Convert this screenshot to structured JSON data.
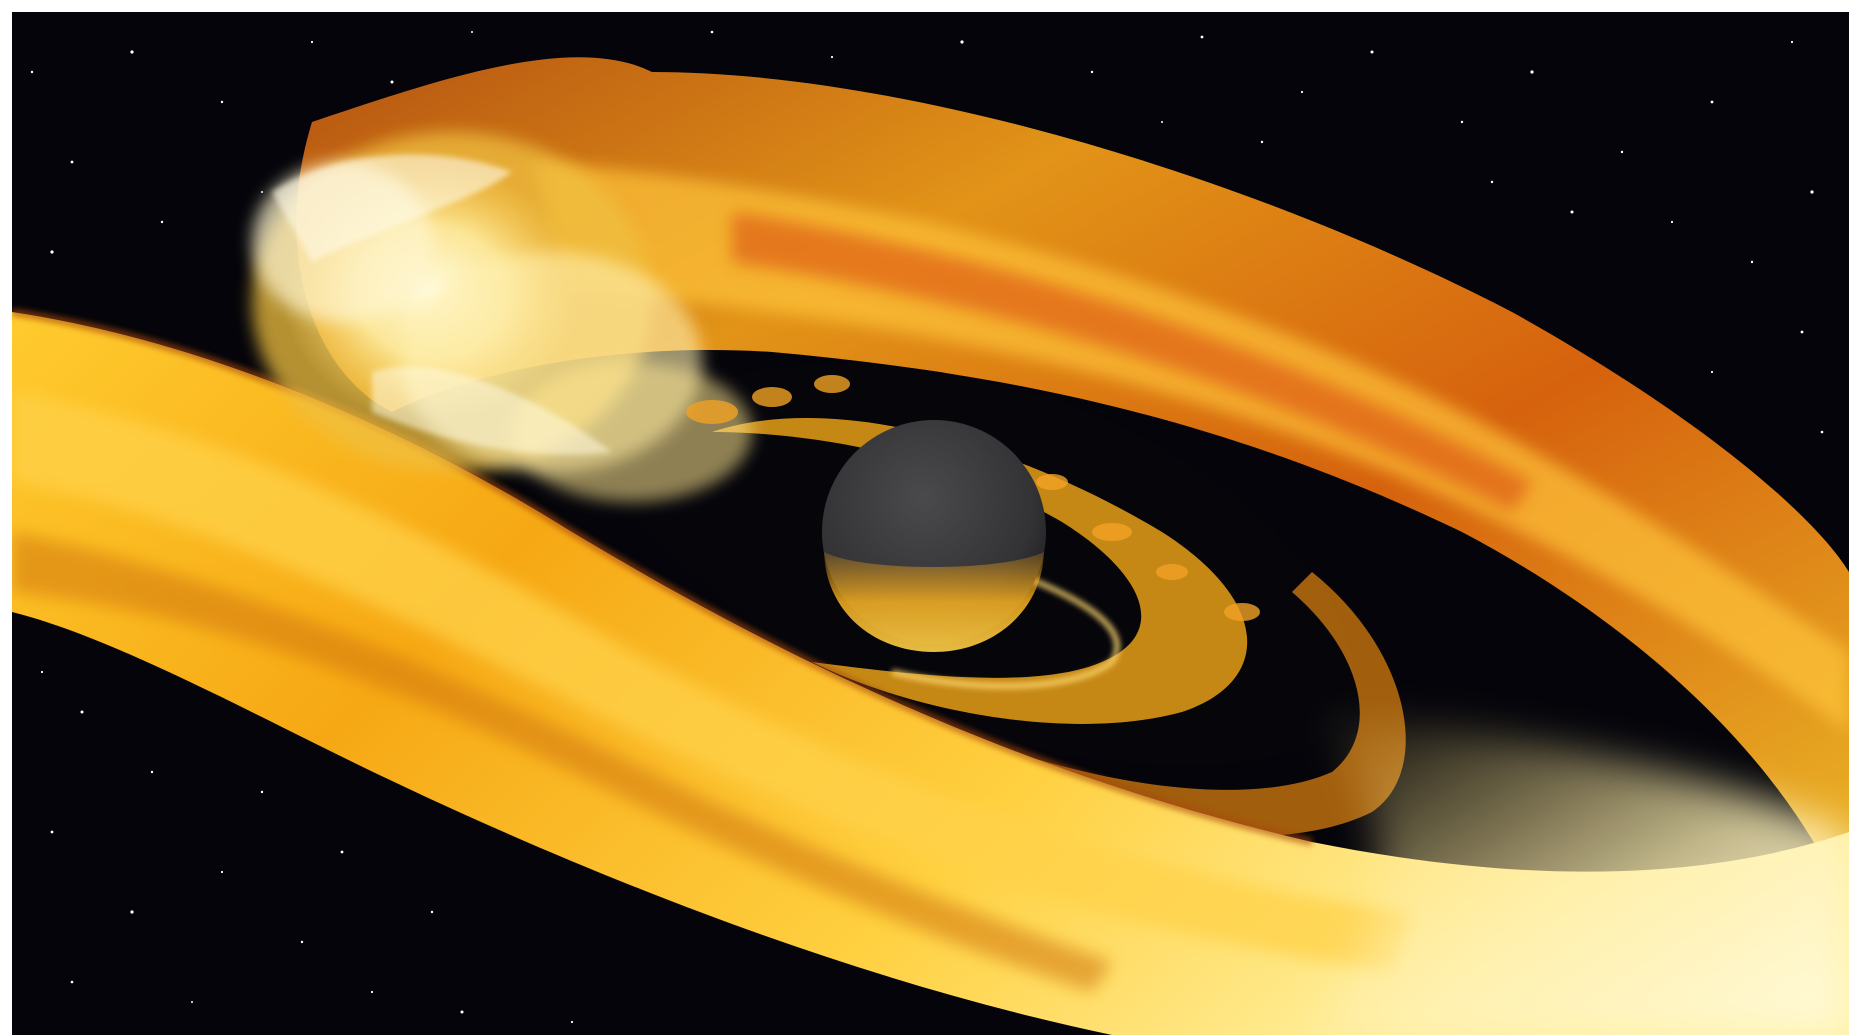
{
  "scene": {
    "subject": "black-hole-accretion-tidal-disruption",
    "colors": {
      "space": "#04040a",
      "star": "#ffffff",
      "plasma_deep": "#c04a0a",
      "plasma_orange": "#f08a0c",
      "plasma_gold": "#f6b41a",
      "plasma_yellow": "#ffd84a",
      "plasma_hot": "#fff6c8",
      "black_hole": "#3a3a3c",
      "frame": "#ffffff"
    }
  }
}
